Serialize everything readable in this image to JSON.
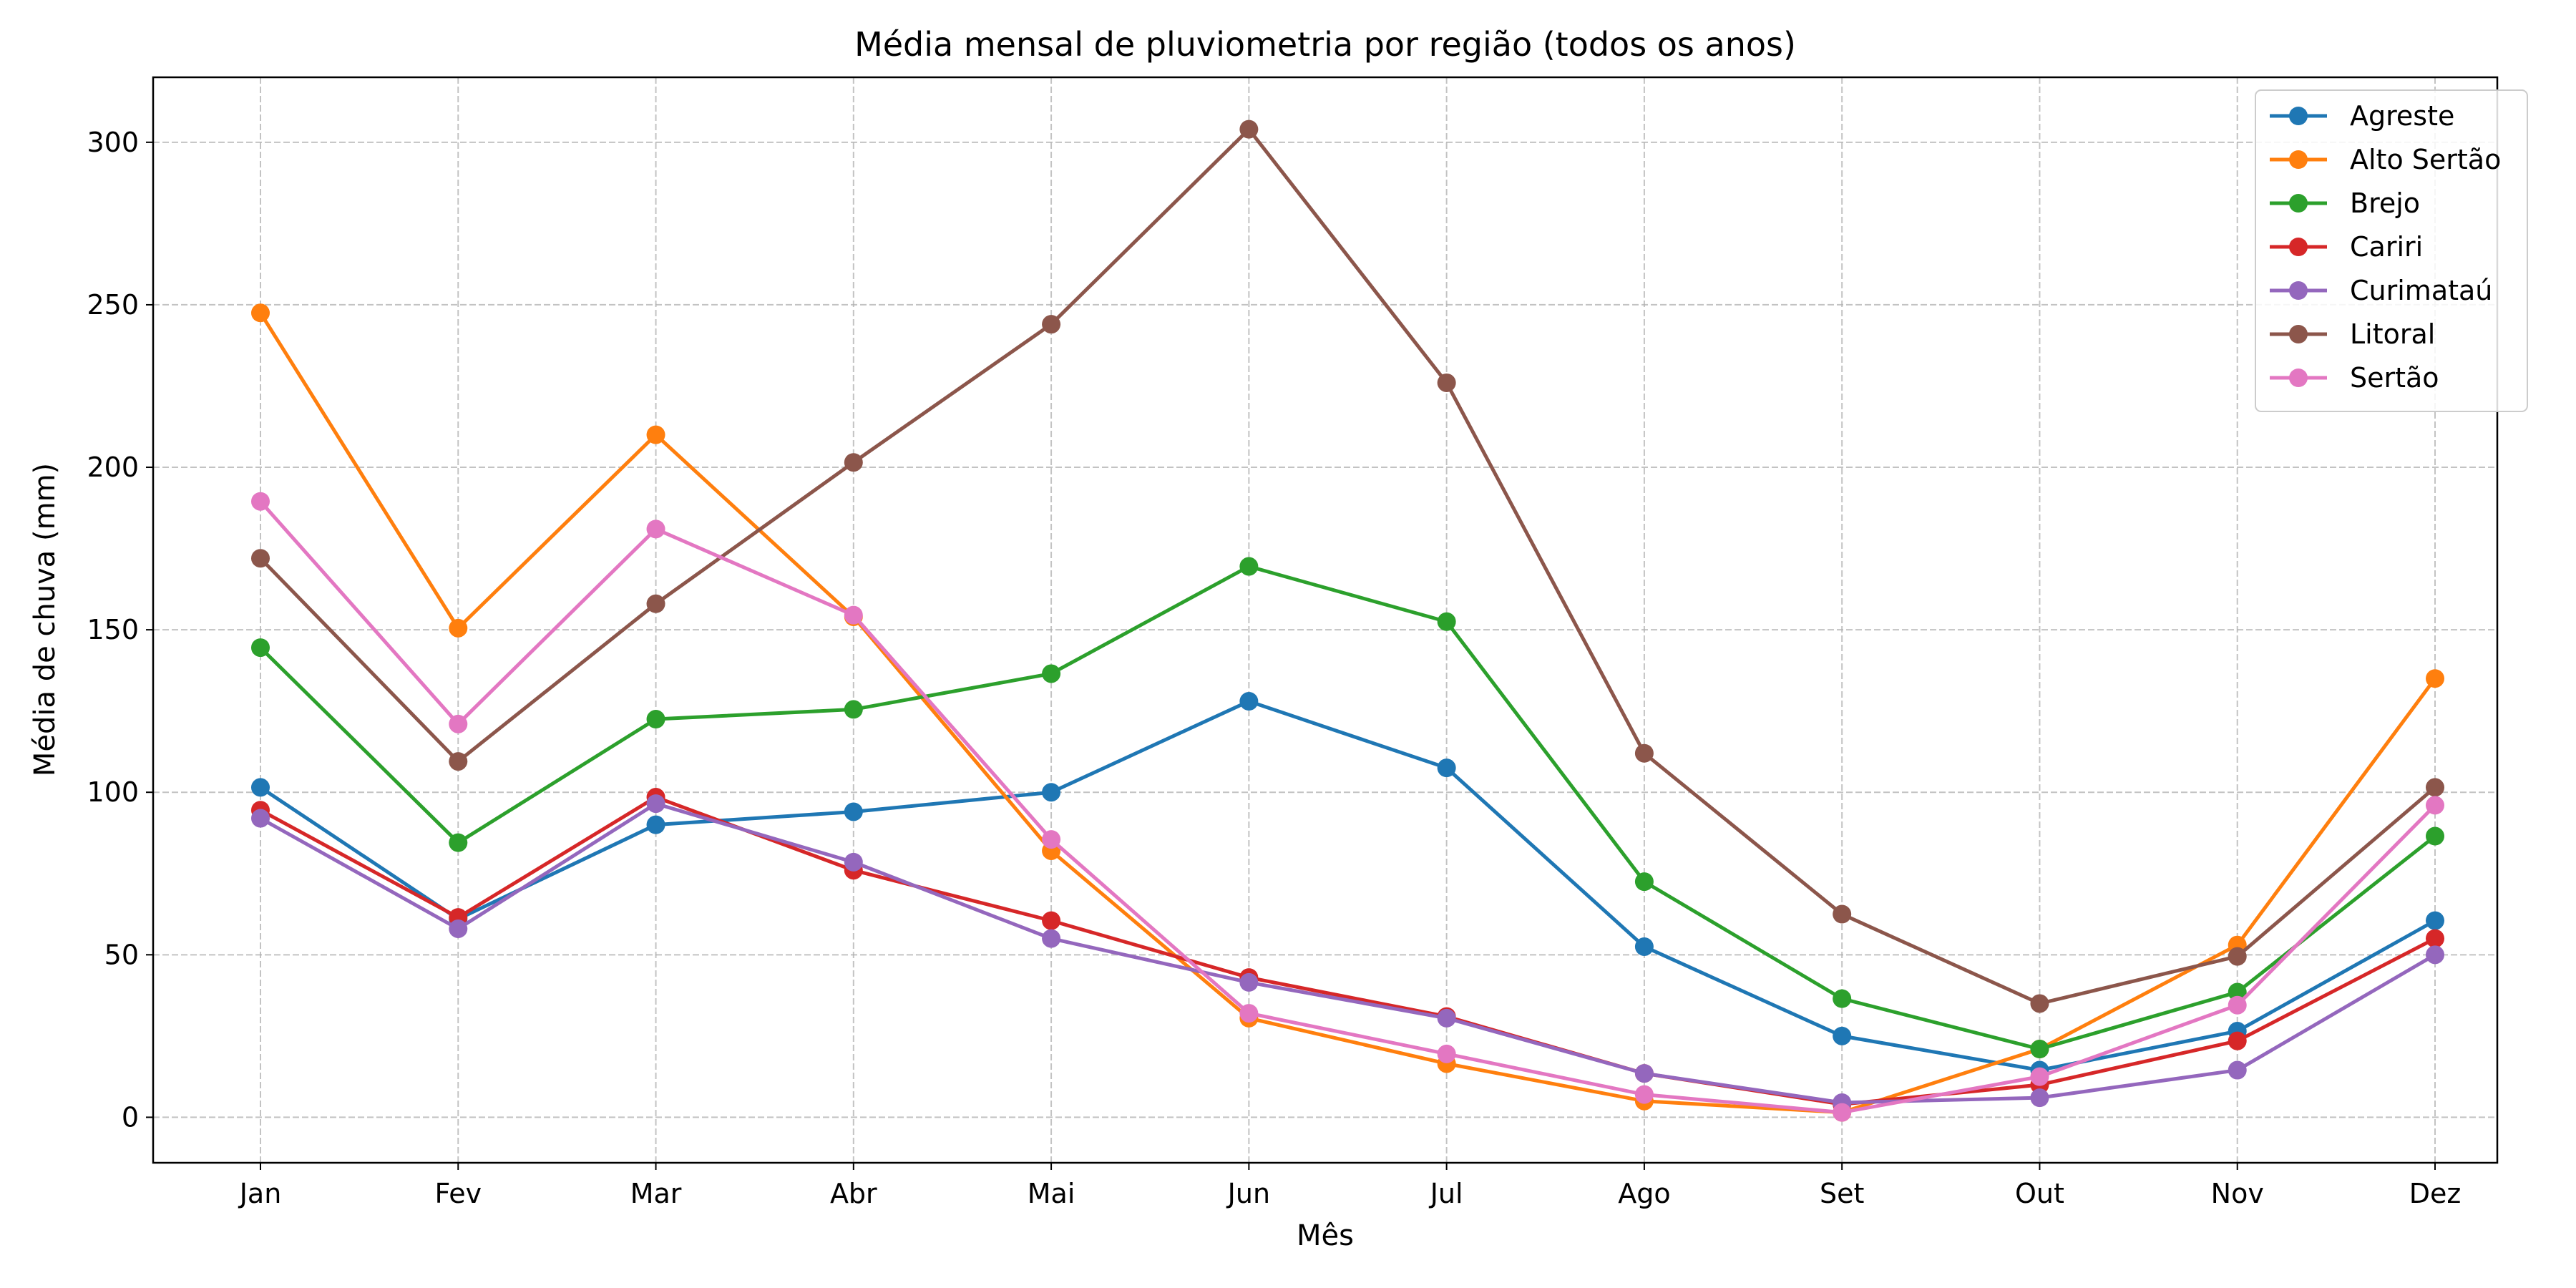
{
  "chart_data": {
    "type": "line",
    "title": "Média mensal de pluviometria por região (todos os anos)",
    "xlabel": "Mês",
    "ylabel": "Média de chuva (mm)",
    "categories": [
      "Jan",
      "Fev",
      "Mar",
      "Abr",
      "Mai",
      "Jun",
      "Jul",
      "Ago",
      "Set",
      "Out",
      "Nov",
      "Dez"
    ],
    "ylim": [
      -14,
      320
    ],
    "yticks": [
      0,
      50,
      100,
      150,
      200,
      250,
      300
    ],
    "grid": true,
    "legend_position": "top-right",
    "series": [
      {
        "name": "Agreste",
        "color": "#1f77b4",
        "values": [
          101.5,
          61,
          90,
          94,
          100,
          128,
          107.5,
          52.5,
          25,
          14.5,
          26.5,
          60.5
        ]
      },
      {
        "name": "Alto Sertão",
        "color": "#ff7f0e",
        "values": [
          247.5,
          150.5,
          210,
          154,
          82,
          30.5,
          16.5,
          5,
          1.5,
          21,
          53,
          135
        ]
      },
      {
        "name": "Brejo",
        "color": "#2ca02c",
        "values": [
          144.5,
          84.5,
          122.5,
          125.5,
          136.5,
          169.5,
          152.5,
          72.5,
          36.5,
          21,
          38.5,
          86.5
        ]
      },
      {
        "name": "Cariri",
        "color": "#d62728",
        "values": [
          94.5,
          61.5,
          98.5,
          76,
          60.5,
          43,
          31,
          13.5,
          4,
          10,
          23.5,
          55
        ]
      },
      {
        "name": "Curimataú",
        "color": "#9467bd",
        "values": [
          92,
          58,
          96.5,
          78.5,
          55,
          41.5,
          30.5,
          13.5,
          4.5,
          6,
          14.5,
          50
        ]
      },
      {
        "name": "Litoral",
        "color": "#8c564b",
        "values": [
          172,
          109.5,
          158,
          201.5,
          244,
          304,
          226,
          112,
          62.5,
          35,
          49.5,
          101.5
        ]
      },
      {
        "name": "Sertão",
        "color": "#e377c2",
        "values": [
          189.5,
          121,
          181,
          154.5,
          85.5,
          32,
          19.5,
          7,
          1.5,
          12.5,
          34.5,
          96
        ]
      }
    ]
  }
}
